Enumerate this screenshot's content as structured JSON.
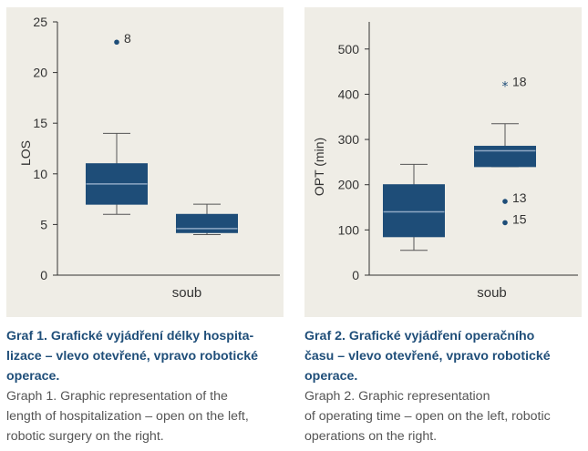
{
  "theme": {
    "panel_bg": "#efede6",
    "box_fill": "#1e4d78",
    "median_color": "#8fa8c4",
    "caption_title_color": "#1f4e79",
    "caption_text_color": "#555555"
  },
  "chart_data": [
    {
      "type": "box",
      "xlabel": "soub",
      "ylabel": "LOS",
      "ylim": [
        0,
        25
      ],
      "yticks": [
        0,
        5,
        10,
        15,
        20,
        25
      ],
      "grid": false,
      "boxes": [
        {
          "whisker_low": 6,
          "q1": 7,
          "median": 9,
          "q3": 11,
          "whisker_high": 14
        },
        {
          "whisker_low": 4,
          "q1": 4.2,
          "median": 4.6,
          "q3": 6,
          "whisker_high": 7
        }
      ],
      "outliers": [
        {
          "box": 0,
          "value": 23,
          "label": "8",
          "marker": "dot"
        }
      ]
    },
    {
      "type": "box",
      "xlabel": "soub",
      "ylabel": "OPT (min)",
      "ylim": [
        0,
        560
      ],
      "yticks": [
        0,
        100,
        200,
        300,
        400,
        500
      ],
      "grid": false,
      "boxes": [
        {
          "whisker_low": 55,
          "q1": 85,
          "median": 140,
          "q3": 200,
          "whisker_high": 245
        },
        {
          "whisker_low": 240,
          "q1": 240,
          "median": 275,
          "q3": 285,
          "whisker_high": 335
        }
      ],
      "outliers": [
        {
          "box": 1,
          "value": 420,
          "label": "18",
          "marker": "star"
        },
        {
          "box": 1,
          "value": 163,
          "label": "13",
          "marker": "dot"
        },
        {
          "box": 1,
          "value": 116,
          "label": "15",
          "marker": "dot"
        }
      ]
    }
  ],
  "captions": [
    {
      "cz": [
        "Graf 1. Grafické vyjádření délky hospita-",
        "lizace – vlevo otevřené, vpravo robotické",
        "operace."
      ],
      "en": [
        "Graph 1. Graphic representation of the",
        "length of hospitalization – open on the left,",
        "robotic surgery on the right."
      ]
    },
    {
      "cz": [
        "Graf 2. Grafické vyjádření operačního",
        "času – vlevo otevřené, vpravo robotické",
        "operace."
      ],
      "en": [
        "Graph 2. Graphic representation",
        "of operating time – open on the left, robotic",
        "operations on the right."
      ]
    }
  ]
}
